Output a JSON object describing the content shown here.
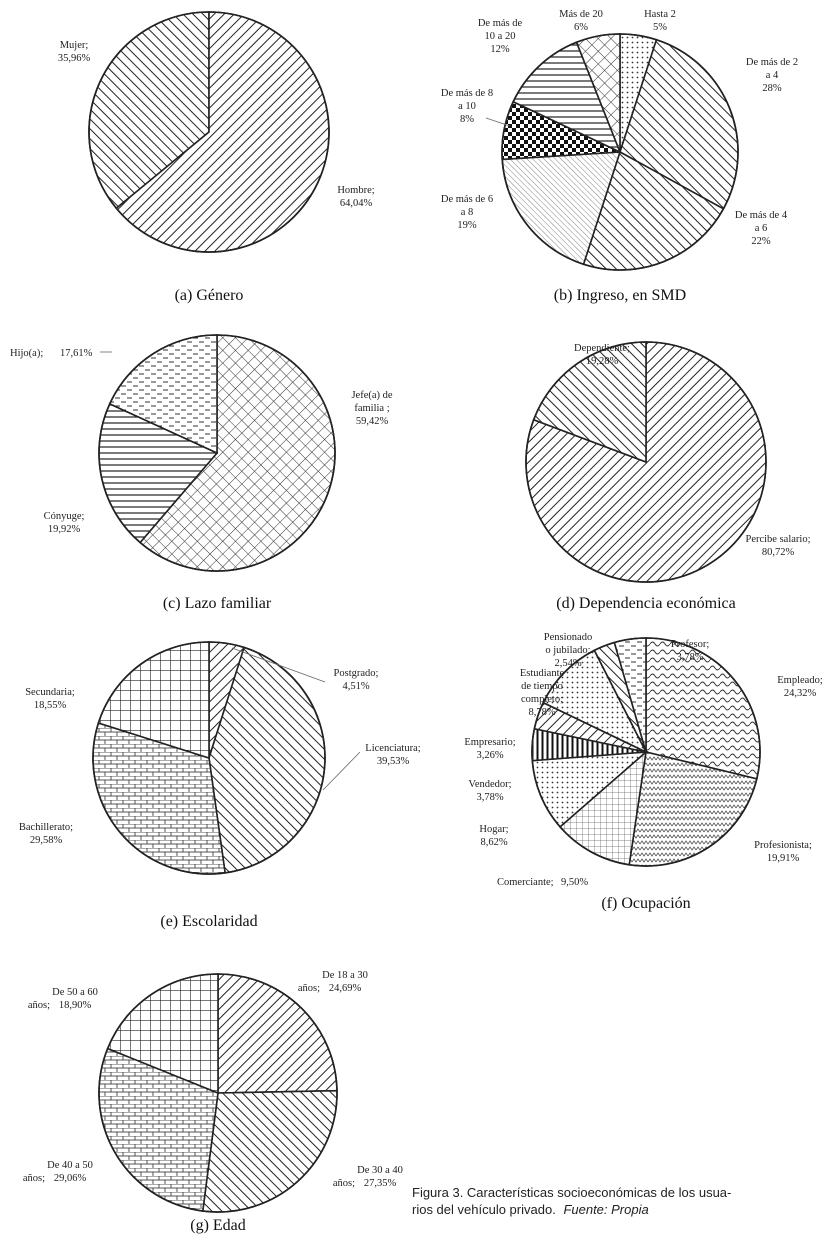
{
  "chart_data": [
    {
      "type": "pie",
      "caption": "(a)  Género",
      "slices": [
        {
          "label": "Mujer;",
          "pct": "35,96%",
          "value": 35.96,
          "pattern": "p-hatch-r"
        },
        {
          "label": "Hombre;",
          "pct": "64,04%",
          "value": 64.04,
          "pattern": "p-hatch-l"
        }
      ]
    },
    {
      "type": "pie",
      "caption": "(b) Ingreso, en SMD",
      "slices": [
        {
          "label": "Hasta 2",
          "pct": "5%",
          "value": 5,
          "pattern": "p-dots"
        },
        {
          "label": "De más de 2 a 4",
          "pct": "28%",
          "value": 28,
          "pattern": "p-hatch-r"
        },
        {
          "label": "De más de 4 a 6",
          "pct": "22%",
          "value": 22,
          "pattern": "p-hatch-r"
        },
        {
          "label": "De más de 6 a 8",
          "pct": "19%",
          "value": 19,
          "pattern": "p-fine"
        },
        {
          "label": "De más de 8 a 10",
          "pct": "8%",
          "value": 8,
          "pattern": "p-check"
        },
        {
          "label": "De más de 10 a 20",
          "pct": "12%",
          "value": 12,
          "pattern": "p-hlines"
        },
        {
          "label": "Más de 20",
          "pct": "6%",
          "value": 6,
          "pattern": "p-diamond"
        }
      ]
    },
    {
      "type": "pie",
      "caption": "(c)   Lazo familiar",
      "slices": [
        {
          "label": "Jefe(a) de familia ;",
          "pct": "59,42%",
          "value": 59.42,
          "pattern": "p-diamond"
        },
        {
          "label": "Cónyuge;",
          "pct": "19,92%",
          "value": 19.92,
          "pattern": "p-hlines"
        },
        {
          "label": "Hijo(a);",
          "pct": "17,61%",
          "value": 17.61,
          "pattern": "p-dash"
        }
      ]
    },
    {
      "type": "pie",
      "caption": "(d) Dependencia económica",
      "slices": [
        {
          "label": "Percibe salario;",
          "pct": "80,72%",
          "value": 80.72,
          "pattern": "p-hatch-l"
        },
        {
          "label": "Dependiente;",
          "pct": "19,28%",
          "value": 19.28,
          "pattern": "p-hatch-r"
        }
      ]
    },
    {
      "type": "pie",
      "caption": "(e)   Escolaridad",
      "slices": [
        {
          "label": "Postgrado;",
          "pct": "4,51%",
          "value": 4.51,
          "pattern": "p-hatch-l"
        },
        {
          "label": "Licenciatura;",
          "pct": "39,53%",
          "value": 39.53,
          "pattern": "p-hatch-r"
        },
        {
          "label": "Bachillerato;",
          "pct": "29,58%",
          "value": 29.58,
          "pattern": "p-brick"
        },
        {
          "label": "Secundaria;",
          "pct": "18,55%",
          "value": 18.55,
          "pattern": "p-grid"
        }
      ]
    },
    {
      "type": "pie",
      "caption": "(f) Ocupación",
      "slices": [
        {
          "label": "Empleado;",
          "pct": "24,32%",
          "value": 24.32,
          "pattern": "p-wave"
        },
        {
          "label": "Profesionista;",
          "pct": "19,91%",
          "value": 19.91,
          "pattern": "p-zig"
        },
        {
          "label": "Comerciante;",
          "pct": "9,50%",
          "value": 9.5,
          "pattern": "p-smallgrid"
        },
        {
          "label": "Hogar;",
          "pct": "8,62%",
          "value": 8.62,
          "pattern": "p-dots"
        },
        {
          "label": "Vendedor;",
          "pct": "3,78%",
          "value": 3.78,
          "pattern": "p-vlines"
        },
        {
          "label": "Empresario;",
          "pct": "3,26%",
          "value": 3.26,
          "pattern": "p-hatch-l"
        },
        {
          "label": "Estudiante de tiempo completo;",
          "pct": "8,78%",
          "value": 8.78,
          "pattern": "p-dots"
        },
        {
          "label": "Pensionado o jubilado;",
          "pct": "2,54%",
          "value": 2.54,
          "pattern": "p-hatch-r"
        },
        {
          "label": "Profesor;",
          "pct": "3,78%",
          "value": 3.78,
          "pattern": "p-dash"
        }
      ]
    },
    {
      "type": "pie",
      "caption": "(g)   Edad",
      "slices": [
        {
          "label": "De 18 a 30 años;",
          "pct": "24,69%",
          "value": 24.69,
          "pattern": "p-hatch-l"
        },
        {
          "label": "De 30 a 40 años;",
          "pct": "27,35%",
          "value": 27.35,
          "pattern": "p-hatch-r"
        },
        {
          "label": "De 40 a 50 años;",
          "pct": "29,06%",
          "value": 29.06,
          "pattern": "p-brick"
        },
        {
          "label": "De 50 a 60 años;",
          "pct": "18,90%",
          "value": 18.9,
          "pattern": "p-grid"
        }
      ]
    }
  ],
  "figure_caption": {
    "line1": "Figura 3. Características socioeconómicas de los usua-",
    "line2_prefix": "rios del vehículo privado.",
    "line2_italic": "Fuente: Propia"
  }
}
